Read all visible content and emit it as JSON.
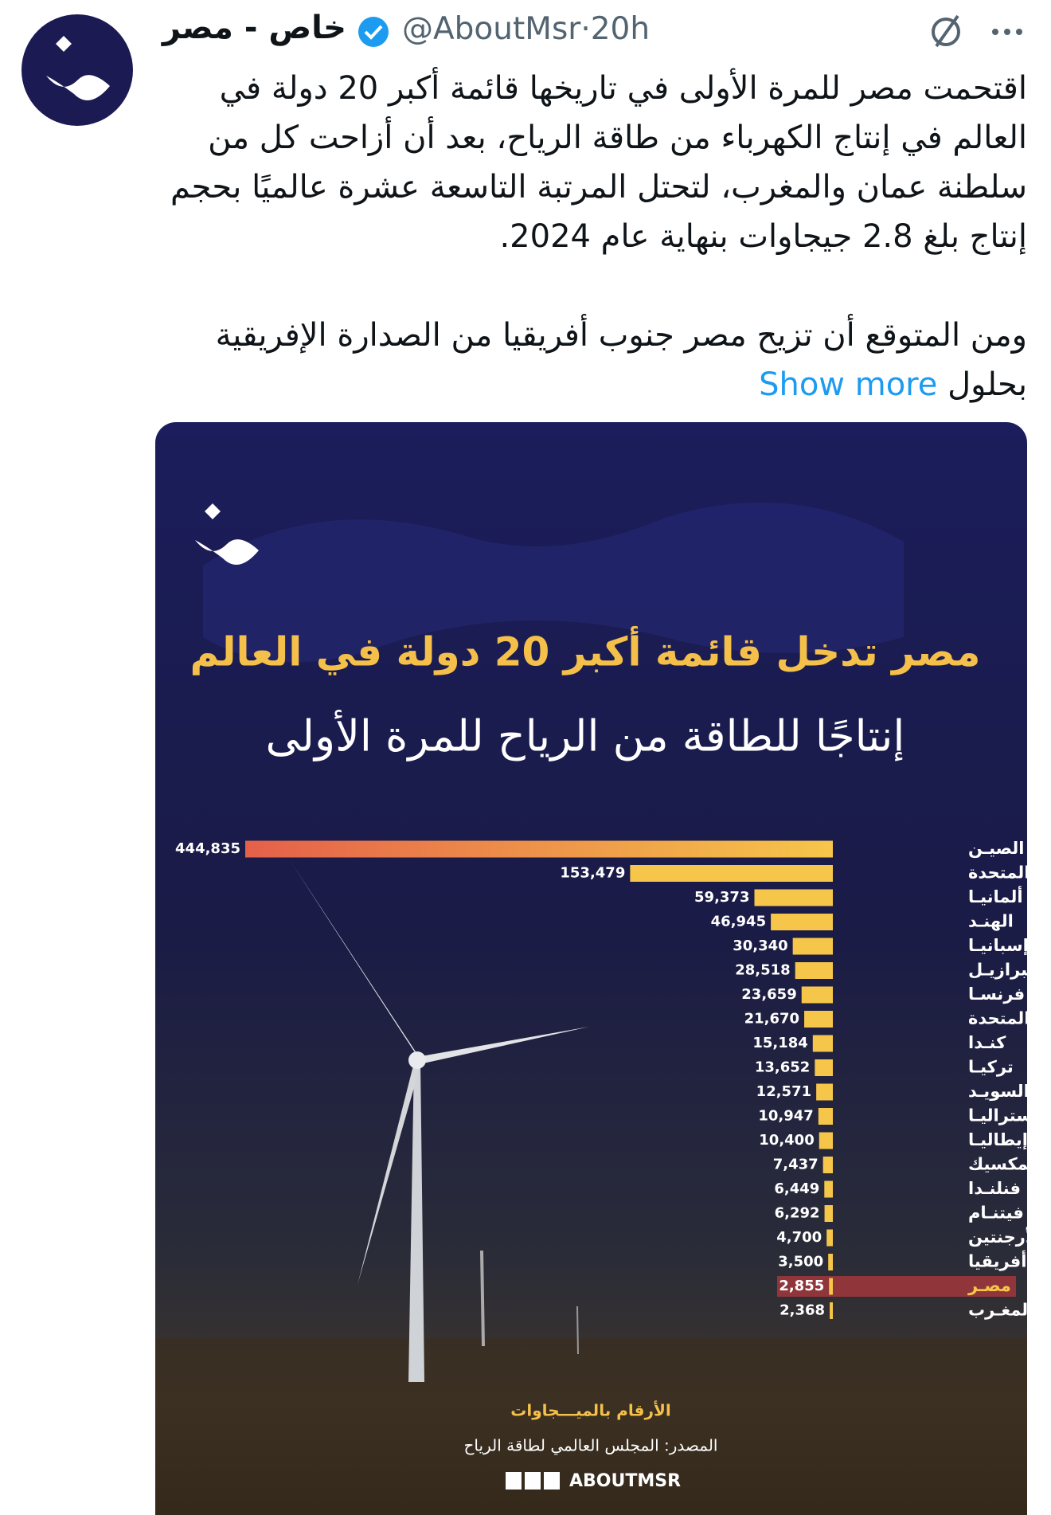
{
  "tweet": {
    "author": {
      "name": "خاص - مصر",
      "handle": "@AboutMsr"
    },
    "separator": "·",
    "time": "20h",
    "text": [
      "اقتحمت مصر للمرة الأولى في تاريخها قائمة أكبر 20 دولة في العالم في إنتاج الكهرباء من طاقة الرياح، بعد أن أزاحت كل من سلطنة عمان والمغرب، لتحتل المرتبة التاسعة عشرة عالميًا بحجم إنتاج بلغ 2.8 جيجاوات بنهاية عام 2024.",
      "ومن المتوقع أن تزيح مصر جنوب أفريقيا من الصدارة الإفريقية بحلول"
    ],
    "show_more": "Show more"
  },
  "chart_data": {
    "type": "bar",
    "orientation": "horizontal",
    "title": "مصر تدخل قائمة أكبر 20 دولة في العالم",
    "subtitle": "إنتاجًا للطاقة من الرياح للمرة الأولى",
    "categories": [
      "الصيـن",
      "الولايات المتحدة",
      "ألمانيـا",
      "الهنـد",
      "إسبانيـا",
      "البرازيـل",
      "فرنسـا",
      "المملكة المتحدة",
      "كنـدا",
      "تركيـا",
      "السويـد",
      "أستراليـا",
      "إيطاليـا",
      "المكسيك",
      "فنلنـدا",
      "فيتنـام",
      "الأرجنتين",
      "جنوب أفريقيا",
      "مصـر",
      "المغـرب"
    ],
    "values": [
      444835,
      153479,
      59373,
      46945,
      30340,
      28518,
      23659,
      21670,
      15184,
      13652,
      12571,
      10947,
      10400,
      7437,
      6449,
      6292,
      4700,
      3500,
      2855,
      2368
    ],
    "value_labels": [
      "444,835",
      "153,479",
      "59,373",
      "46,945",
      "30,340",
      "28,518",
      "23,659",
      "21,670",
      "15,184",
      "13,652",
      "12,571",
      "10,947",
      "10,400",
      "7,437",
      "6,449",
      "6,292",
      "4,700",
      "3,500",
      "2,855",
      "2,368"
    ],
    "colors": [
      "#e5604a",
      "#f6c64a"
    ],
    "highlight_index": 18,
    "highlight_color": "#b23a3e",
    "unit_note": "الأرقام بالميـــجاوات",
    "source": "المصدر: المجلس العالمي لطاقة الرياح",
    "brand": "ABOUTMSR"
  }
}
